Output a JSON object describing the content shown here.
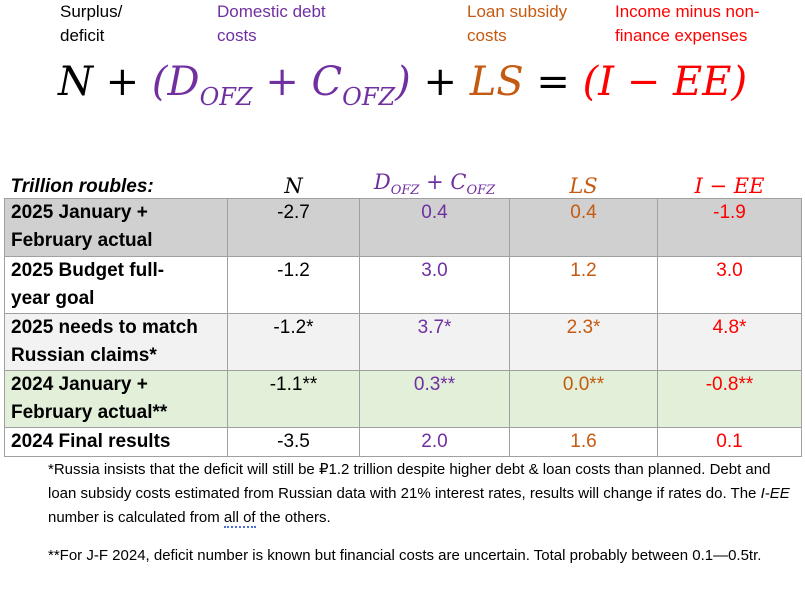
{
  "labels": {
    "surplus": [
      "Surplus/",
      "deficit"
    ],
    "domestic": [
      "Domestic debt",
      "costs"
    ],
    "loan": [
      "Loan subsidy",
      "costs"
    ],
    "income": [
      "Income minus non-",
      "finance expenses"
    ]
  },
  "equation": {
    "N": "N",
    "plus": "+",
    "open_paren": "(",
    "D": "D",
    "sub_ofz": "OFZ",
    "C": "C",
    "close_paren": ")",
    "LS": "LS",
    "equals": "=",
    "I": "I",
    "minus": "−",
    "EE": "EE"
  },
  "colors": {
    "purple": "#7030a0",
    "orange": "#c55a11",
    "red": "#ff0000",
    "grey_row": "#d0d0d0",
    "green_row": "#e2efd9"
  },
  "table": {
    "units": "Trillion roubles:",
    "headers": {
      "n": "N",
      "d": "D",
      "d_sub": "OFZ",
      "plus": " + ",
      "c": "C",
      "c_sub": "OFZ",
      "ls": "LS",
      "iee": "I − EE"
    },
    "rows": [
      {
        "label": [
          "2025 January +",
          "February actual"
        ],
        "n": "-2.7",
        "d": "0.4",
        "ls": "0.4",
        "iee": "-1.9"
      },
      {
        "label": [
          "2025 Budget full-",
          "year goal"
        ],
        "n": "-1.2",
        "d": "3.0",
        "ls": "1.2",
        "iee": "3.0"
      },
      {
        "label": [
          "2025 needs to match",
          "Russian claims*"
        ],
        "n": "-1.2*",
        "d": "3.7*",
        "ls": "2.3*",
        "iee": "4.8*"
      },
      {
        "label": [
          "2024 January +",
          "February actual**"
        ],
        "n": "-1.1**",
        "d": "0.3**",
        "ls": "0.0**",
        "iee": "-0.8**"
      },
      {
        "label": [
          "2024 Final results"
        ],
        "n": "-3.5",
        "d": "2.0",
        "ls": "1.6",
        "iee": "0.1"
      }
    ]
  },
  "notes": {
    "note1_a": "*Russia insists that the deficit will still be ₽1.2 trillion despite higher debt & loan costs than planned. Debt and loan subsidy costs estimated from Russian data with 21% interest rates, results will change if rates do. The ",
    "note1_iee": "I-EE",
    "note1_b": " number is calculated from ",
    "note1_allof": "all of",
    "note1_c": " the others.",
    "note2": "**For J-F 2024, deficit number is known but financial costs are uncertain. Total probably between 0.1—0.5tr."
  }
}
